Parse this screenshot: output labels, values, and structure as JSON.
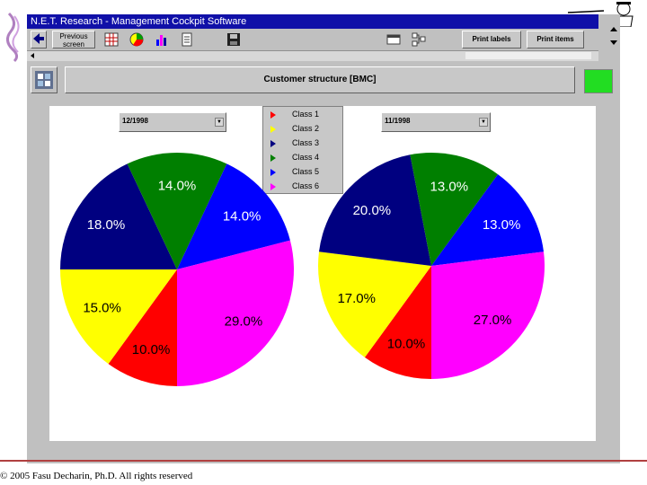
{
  "window": {
    "title": "N.E.T. Research - Management Cockpit Software"
  },
  "toolbar": {
    "previous_label": "Previous screen",
    "print_labels_label": "Print labels",
    "print_items_label": "Print items"
  },
  "panel": {
    "title": "Customer structure [BMC]"
  },
  "dropdown_left": {
    "value": "12/1998"
  },
  "dropdown_right": {
    "value": "11/1998"
  },
  "legend": [
    {
      "label": "Class 1",
      "color": "#ff0000"
    },
    {
      "label": "Class 2",
      "color": "#ffff00"
    },
    {
      "label": "Class 3",
      "color": "#000080"
    },
    {
      "label": "Class 4",
      "color": "#007f00"
    },
    {
      "label": "Class 5",
      "color": "#0000ff"
    },
    {
      "label": "Class 6",
      "color": "#ff00ff"
    }
  ],
  "chart_data": [
    {
      "type": "pie",
      "title": "12/1998",
      "categories": [
        "Class 1",
        "Class 2",
        "Class 3",
        "Class 4",
        "Class 5",
        "Class 6"
      ],
      "values": [
        10.0,
        15.0,
        18.0,
        14.0,
        14.0,
        29.0
      ],
      "labels": [
        "10.0%",
        "15.0%",
        "18.0%",
        "14.0%",
        "14.0%",
        "29.0%"
      ],
      "colors": [
        "#ff0000",
        "#ffff00",
        "#000080",
        "#007f00",
        "#0000ff",
        "#ff00ff"
      ],
      "legend": "top"
    },
    {
      "type": "pie",
      "title": "11/1998",
      "categories": [
        "Class 1",
        "Class 2",
        "Class 3",
        "Class 4",
        "Class 5",
        "Class 6"
      ],
      "values": [
        10.0,
        17.0,
        20.0,
        13.0,
        13.0,
        27.0
      ],
      "labels": [
        "10.0%",
        "17.0%",
        "20.0%",
        "13.0%",
        "13.0%",
        "27.0%"
      ],
      "colors": [
        "#ff0000",
        "#ffff00",
        "#000080",
        "#007f00",
        "#0000ff",
        "#ff00ff"
      ],
      "legend": "top"
    }
  ],
  "footer": {
    "copyright": "© 2005 Fasu Decharin, Ph.D. All rights reserved"
  }
}
